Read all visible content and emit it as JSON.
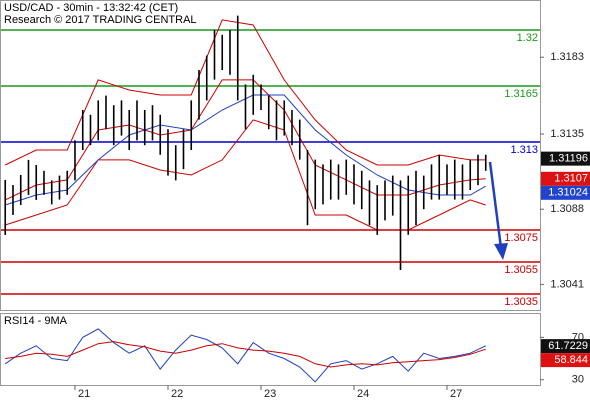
{
  "chart_data": [
    {
      "type": "ohlc",
      "title": "USD/CAD - 30min - 13:32:42 (CET)",
      "subtitle": "Research © 2017 TRADING CENTRAL",
      "xlim": [
        -19.35,
        120
      ],
      "ylim": [
        1.3025,
        1.321875
      ],
      "yticks": [
        1.3183,
        1.3135,
        1.3088,
        1.3041
      ],
      "xticks": [
        {
          "value": 0,
          "label": "21"
        },
        {
          "value": 24,
          "label": "22"
        },
        {
          "value": 48,
          "label": "23"
        },
        {
          "value": 72,
          "label": "24"
        },
        {
          "value": 96,
          "label": "27"
        }
      ],
      "color": "#000000",
      "x": [
        -18,
        -16,
        -14,
        -12,
        -10,
        -8,
        -6,
        -4,
        -2,
        0,
        2,
        4,
        6,
        8,
        10,
        12,
        14,
        16,
        18,
        20,
        22,
        24,
        26,
        28,
        30,
        32,
        34,
        36,
        38,
        40,
        42,
        44,
        46,
        48,
        50,
        52,
        54,
        56,
        58,
        60,
        62,
        64,
        66,
        68,
        70,
        72,
        74,
        76,
        78,
        80,
        82,
        84,
        86,
        88,
        90,
        92,
        94,
        96,
        98,
        100,
        102,
        104,
        106
      ],
      "high": [
        1.31063,
        1.31031,
        1.31094,
        1.31188,
        1.31156,
        1.3112,
        1.3106,
        1.3109,
        1.3112,
        1.3131,
        1.315,
        1.3147,
        1.3156,
        1.3159,
        1.3153,
        1.3156,
        1.315,
        1.3156,
        1.315,
        1.3153,
        1.3147,
        1.3138,
        1.3128,
        1.3138,
        1.3156,
        1.3175,
        1.3184,
        1.32,
        1.3197,
        1.32,
        1.3209,
        1.3166,
        1.3172,
        1.3166,
        1.3159,
        1.3156,
        1.3156,
        1.315,
        1.3144,
        1.3125,
        1.3119,
        1.3116,
        1.3119,
        1.3116,
        1.3119,
        1.3116,
        1.3112,
        1.3106,
        1.3103,
        1.3106,
        1.3109,
        1.3106,
        1.3109,
        1.3112,
        1.3109,
        1.3116,
        1.3122,
        1.3116,
        1.3119,
        1.3116,
        1.3119,
        1.3122,
        1.3122
      ],
      "low": [
        1.30719,
        1.30844,
        1.30906,
        1.30969,
        1.30938,
        1.3097,
        1.3091,
        1.3094,
        1.3097,
        1.3106,
        1.3125,
        1.3128,
        1.3131,
        1.3138,
        1.3128,
        1.3134,
        1.3125,
        1.3131,
        1.3128,
        1.3131,
        1.3122,
        1.3109,
        1.3106,
        1.3113,
        1.3125,
        1.3144,
        1.3156,
        1.3169,
        1.3175,
        1.3172,
        1.3156,
        1.3138,
        1.3147,
        1.315,
        1.3138,
        1.3131,
        1.3134,
        1.3128,
        1.3119,
        1.3078,
        1.3088,
        1.3091,
        1.3094,
        1.3094,
        1.3097,
        1.3091,
        1.3088,
        1.3078,
        1.3072,
        1.3081,
        1.3084,
        1.305,
        1.3072,
        1.3078,
        1.3088,
        1.3094,
        1.3094,
        1.3097,
        1.3094,
        1.3094,
        1.31,
        1.3103,
        1.3112
      ],
      "overlay_x": [
        -18,
        -10,
        -2,
        6,
        14,
        22,
        30,
        38,
        46,
        54,
        62,
        70,
        78,
        86,
        94,
        102,
        106
      ],
      "overlays": [
        {
          "color": "#cc0000",
          "values": [
            1.31156,
            1.3125,
            1.3125,
            1.31688,
            1.31625,
            1.31594,
            1.31594,
            1.32063,
            1.32031,
            1.31688,
            1.31438,
            1.3125,
            1.31156,
            1.31156,
            1.31219,
            1.31188,
            1.31188
          ]
        },
        {
          "color": "#cc0000",
          "values": [
            1.30781,
            1.30844,
            1.30906,
            1.31188,
            1.31188,
            1.31125,
            1.31094,
            1.31188,
            1.31438,
            1.31375,
            1.30844,
            1.30844,
            1.3075,
            1.3075,
            1.30844,
            1.30938,
            1.30906
          ]
        },
        {
          "color": "#cc0000",
          "values": [
            1.30938,
            1.31031,
            1.31063,
            1.31375,
            1.31406,
            1.31344,
            1.31375,
            1.31688,
            1.31688,
            1.315,
            1.31156,
            1.31063,
            1.30969,
            1.30969,
            1.31031,
            1.31063,
            1.3107
          ]
        },
        {
          "color": "#1f3fbf",
          "values": [
            1.30906,
            1.30969,
            1.31,
            1.31188,
            1.31344,
            1.31406,
            1.31375,
            1.315,
            1.31594,
            1.31594,
            1.31375,
            1.31219,
            1.31094,
            1.31,
            1.30969,
            1.30969,
            1.31024
          ]
        }
      ],
      "levels": [
        {
          "value": 1.32,
          "color": "#1a9a1a"
        },
        {
          "value": 1.3165,
          "color": "#1a9a1a"
        },
        {
          "value": 1.313,
          "color": "#0000cc"
        },
        {
          "value": 1.3075,
          "color": "#cc0000"
        },
        {
          "value": 1.3055,
          "color": "#cc0000"
        },
        {
          "value": 1.3035,
          "color": "#cc0000"
        }
      ],
      "last_labels": [
        {
          "value": 1.31196,
          "color": "#111111"
        },
        {
          "value": 1.3107,
          "color": "#dd1111"
        },
        {
          "value": 1.31024,
          "color": "#2244cc"
        }
      ]
    },
    {
      "type": "line",
      "title": "RSI14 - 9MA",
      "xlim": [
        -19.35,
        120
      ],
      "ylim": [
        25,
        93
      ],
      "yticks": [
        70,
        30
      ],
      "x": [
        -18,
        -14,
        -10,
        -6,
        -2,
        2,
        6,
        10,
        14,
        18,
        22,
        26,
        30,
        34,
        38,
        42,
        46,
        50,
        54,
        58,
        62,
        66,
        70,
        74,
        78,
        82,
        86,
        90,
        94,
        98,
        102,
        106
      ],
      "series": [
        {
          "color": "#1f3fbf",
          "values": [
            45,
            55,
            62,
            50,
            48,
            70,
            78,
            65,
            55,
            62,
            40,
            58,
            72,
            68,
            60,
            45,
            65,
            55,
            50,
            42,
            28,
            45,
            48,
            40,
            45,
            52,
            38,
            55,
            50,
            52,
            55,
            62
          ]
        },
        {
          "color": "#cc0000",
          "values": [
            50,
            52,
            55,
            54,
            52,
            58,
            64,
            66,
            63,
            61,
            57,
            55,
            58,
            62,
            64,
            60,
            58,
            57,
            55,
            52,
            45,
            42,
            44,
            45,
            44,
            46,
            47,
            48,
            49,
            51,
            54,
            58.8
          ]
        }
      ],
      "last_labels": [
        {
          "value": 61.7229,
          "color": "#111111"
        },
        {
          "value": 58.844,
          "color": "#dd1111"
        }
      ]
    }
  ]
}
